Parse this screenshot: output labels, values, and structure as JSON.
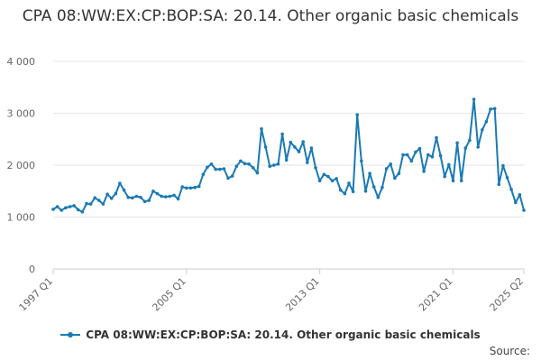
{
  "chart_data": {
    "type": "line",
    "title": "CPA 08:WW:EX:CP:BOP:SA: 20.14. Other organic basic chemicals",
    "xlabel": "",
    "ylabel": "",
    "ylim": [
      0,
      4000
    ],
    "yticks": [
      0,
      1000,
      2000,
      3000,
      4000
    ],
    "ytick_labels": [
      "0",
      "1 000",
      "2 000",
      "3 000",
      "4 000"
    ],
    "x_range": [
      "1997 Q1",
      "2025 Q2"
    ],
    "xtick_labels": [
      "1997 Q1",
      "2005 Q1",
      "2013 Q1",
      "2021 Q1",
      "2025 Q2"
    ],
    "grid": "horizontal",
    "legend": "bottom-center",
    "colors": {
      "series": "#1a7ab5",
      "grid": "#e6e6e6",
      "axis": "#cccccc"
    },
    "series": [
      {
        "name": "CPA 08:WW:EX:CP:BOP:SA: 20.14. Other organic basic chemicals",
        "frequency": "quarterly",
        "start": "1997 Q1",
        "values": [
          1150,
          1200,
          1130,
          1180,
          1200,
          1220,
          1140,
          1100,
          1260,
          1250,
          1370,
          1320,
          1250,
          1440,
          1360,
          1450,
          1650,
          1520,
          1380,
          1370,
          1400,
          1380,
          1300,
          1320,
          1500,
          1450,
          1400,
          1390,
          1400,
          1420,
          1350,
          1580,
          1560,
          1560,
          1570,
          1590,
          1820,
          1960,
          2020,
          1920,
          1920,
          1930,
          1750,
          1790,
          1980,
          2080,
          2030,
          2020,
          1950,
          1850,
          2700,
          2350,
          1980,
          2000,
          2020,
          2600,
          2100,
          2440,
          2350,
          2260,
          2450,
          2050,
          2330,
          1950,
          1700,
          1820,
          1780,
          1700,
          1740,
          1520,
          1450,
          1650,
          1490,
          2970,
          2080,
          1500,
          1840,
          1580,
          1380,
          1570,
          1930,
          2020,
          1750,
          1840,
          2200,
          2200,
          2080,
          2250,
          2320,
          1880,
          2200,
          2160,
          2530,
          2180,
          1780,
          2010,
          1700,
          2430,
          1700,
          2330,
          2480,
          3270,
          2350,
          2680,
          2840,
          3080,
          3090,
          1630,
          1990,
          1760,
          1530,
          1280,
          1430,
          1130
        ]
      }
    ],
    "source_label": "Source:"
  }
}
